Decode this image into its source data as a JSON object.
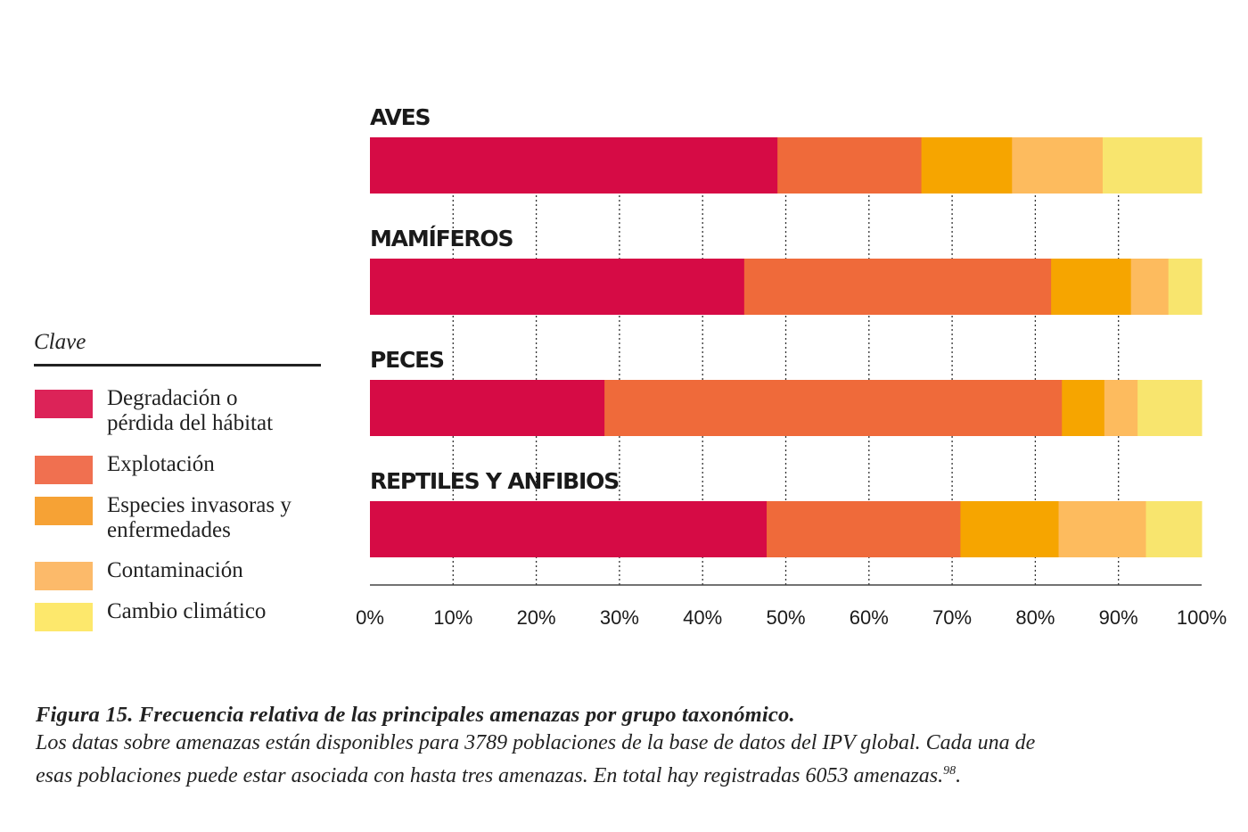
{
  "chart_data": {
    "type": "bar",
    "orientation": "horizontal",
    "stacked": true,
    "categories": [
      "AVES",
      "MAMÍFEROS",
      "PECES",
      "REPTILES Y ANFIBIOS"
    ],
    "series": [
      {
        "name": "Degradación o pérdida del hábitat",
        "color": "#d60b45",
        "values": [
          49,
          45,
          28.2,
          47.7
        ]
      },
      {
        "name": "Explotación",
        "color": "#ef6a3a",
        "values": [
          17.3,
          36.9,
          55,
          23.3
        ]
      },
      {
        "name": "Especies invasoras y enfermedades",
        "color": "#f6a500",
        "values": [
          10.9,
          9.6,
          5.1,
          11.8
        ]
      },
      {
        "name": "Contaminación",
        "color": "#fdbb5e",
        "values": [
          10.9,
          4.5,
          4,
          10.5
        ]
      },
      {
        "name": "Cambio climático",
        "color": "#f8e56e",
        "values": [
          11.9,
          4,
          7.7,
          6.7
        ]
      }
    ],
    "xlim": [
      0,
      100
    ],
    "xticks": [
      "0%",
      "10%",
      "20%",
      "30%",
      "40%",
      "50%",
      "60%",
      "70%",
      "80%",
      "90%",
      "100%"
    ],
    "grid": true,
    "legend_placement": "left"
  },
  "legend": {
    "title": "Clave",
    "items": [
      {
        "label_line1": "Degradación o",
        "label_line2": "pérdida del hábitat",
        "color": "#dc2358"
      },
      {
        "label_line1": "Explotación",
        "label_line2": "",
        "color": "#f07050"
      },
      {
        "label_line1": "Especies invasoras y",
        "label_line2": "enfermedades",
        "color": "#f6a235"
      },
      {
        "label_line1": "Contaminación",
        "label_line2": "",
        "color": "#fcba6a"
      },
      {
        "label_line1": "Cambio climático",
        "label_line2": "",
        "color": "#fde86c"
      }
    ]
  },
  "caption": {
    "title": "Figura 15. Frecuencia relativa de las principales amenazas por grupo taxonómico.",
    "line1": "Los datas sobre amenazas están disponibles para 3789 poblaciones de la base de datos del IPV global. Cada una de",
    "line2": "esas poblaciones puede estar asociada con hasta tres amenazas. En total hay registradas 6053 amenazas.",
    "superscript": "98",
    "end": "."
  }
}
